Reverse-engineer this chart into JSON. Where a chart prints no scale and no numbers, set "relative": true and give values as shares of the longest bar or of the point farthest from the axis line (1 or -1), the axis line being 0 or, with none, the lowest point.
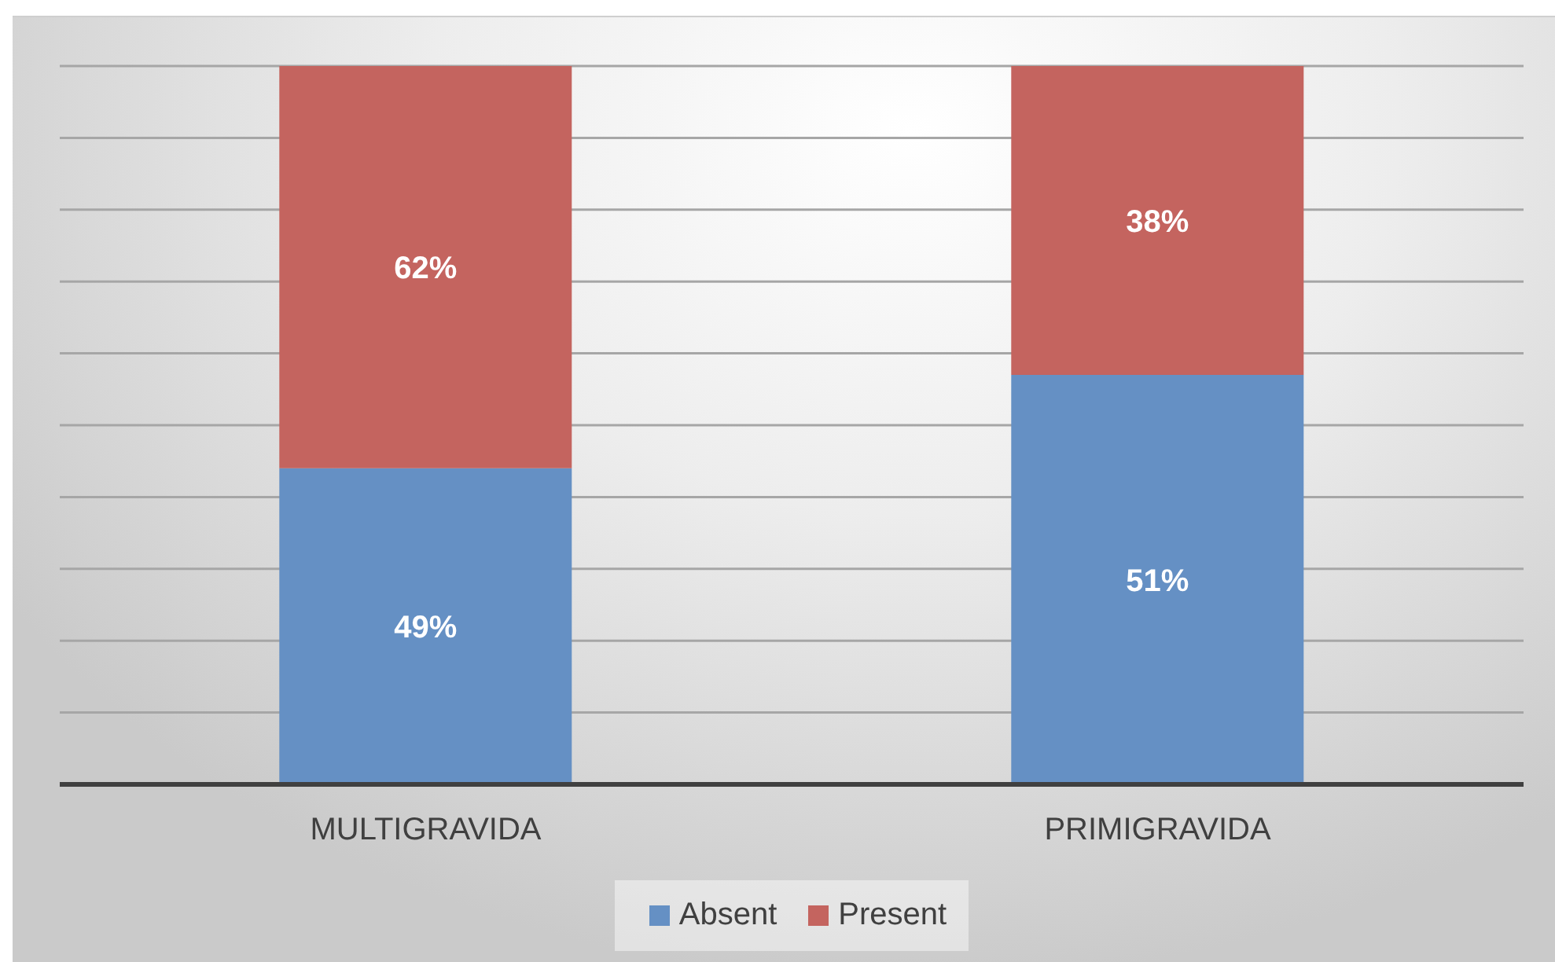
{
  "chart_data": {
    "type": "bar",
    "stacked": true,
    "relative": true,
    "categories": [
      "MULTIGRAVIDA",
      "PRIMIGRAVIDA"
    ],
    "series": [
      {
        "name": "Absent",
        "color": "#6590c4",
        "values": [
          0.44,
          0.57
        ]
      },
      {
        "name": "Present",
        "color": "#c4645f",
        "values": [
          0.56,
          0.43
        ]
      }
    ],
    "annotations": [
      "49%",
      "62%",
      "51%",
      "38%"
    ],
    "grid": "y",
    "legend": "bottom"
  }
}
